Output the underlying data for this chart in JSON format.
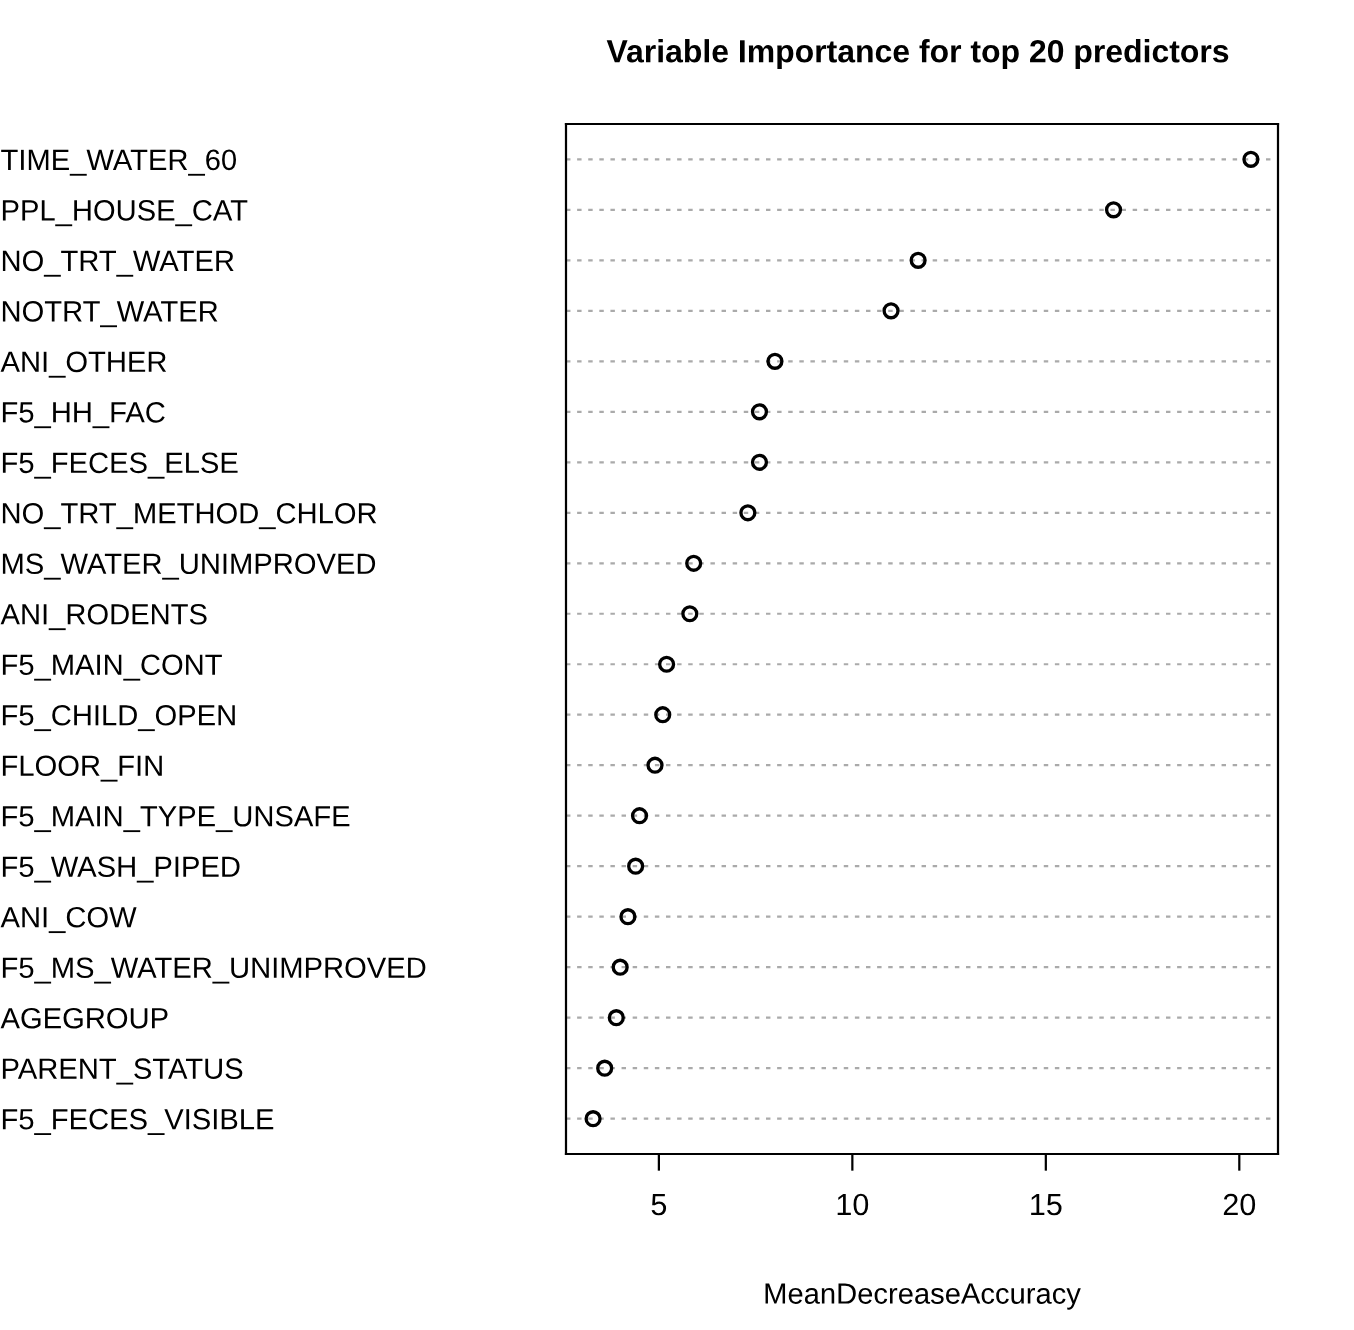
{
  "chart_data": {
    "type": "scatter",
    "orientation": "horizontal",
    "title": "Variable Importance for top 20 predictors",
    "xlabel": "MeanDecreaseAccuracy",
    "categories": [
      "TIME_WATER_60",
      "PPL_HOUSE_CAT",
      "NO_TRT_WATER",
      "NOTRT_WATER",
      "ANI_OTHER",
      "F5_HH_FAC",
      "F5_FECES_ELSE",
      "NO_TRT_METHOD_CHLOR",
      "MS_WATER_UNIMPROVED",
      "ANI_RODENTS",
      "F5_MAIN_CONT",
      "F5_CHILD_OPEN",
      "FLOOR_FIN",
      "F5_MAIN_TYPE_UNSAFE",
      "F5_WASH_PIPED",
      "ANI_COW",
      "F5_MS_WATER_UNIMPROVED",
      "AGEGROUP",
      "PARENT_STATUS",
      "F5_FECES_VISIBLE"
    ],
    "values": [
      20.3,
      16.75,
      11.7,
      11.0,
      8.0,
      7.6,
      7.6,
      7.3,
      5.9,
      5.8,
      5.2,
      5.1,
      4.9,
      4.5,
      4.4,
      4.2,
      4.0,
      3.9,
      3.6,
      3.3
    ],
    "color": "#000000",
    "marker": "circle",
    "grid": "y",
    "xlim": [
      2.6,
      21.0
    ],
    "xticks": [
      5,
      10,
      15,
      20
    ]
  }
}
